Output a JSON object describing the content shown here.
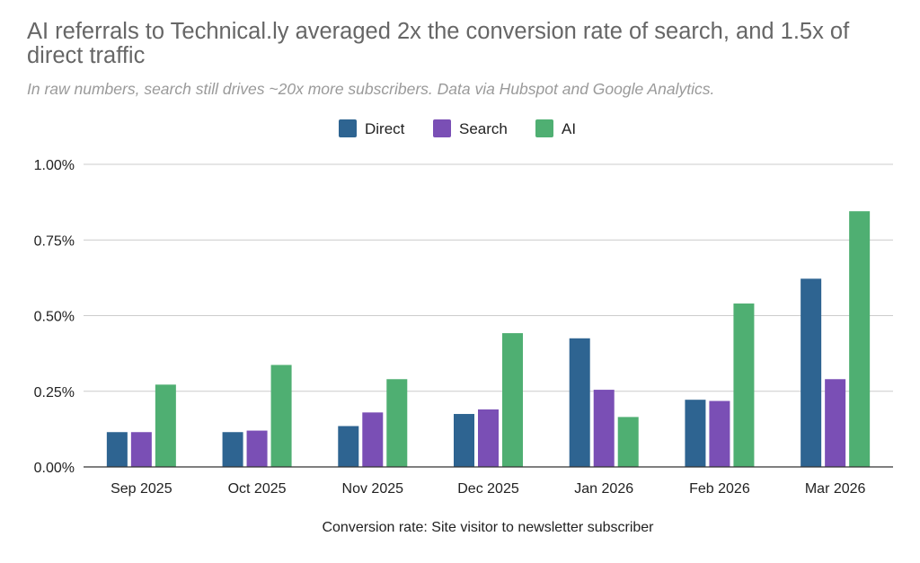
{
  "chart_data": {
    "type": "bar",
    "title": "AI referrals to Technical.ly averaged 2x the conversion rate of search, and 1.5x of direct traffic",
    "subtitle": "In raw numbers, search still drives ~20x more subscribers. Data via Hubspot and Google Analytics.",
    "xlabel": "Conversion rate: Site visitor to newsletter subscriber",
    "ylabel": "",
    "categories": [
      "Sep 2025",
      "Oct 2025",
      "Nov 2025",
      "Dec 2025",
      "Jan 2026",
      "Feb 2026",
      "Mar 2026"
    ],
    "series": [
      {
        "name": "Direct",
        "color": "#2e6491",
        "values": [
          0.115,
          0.115,
          0.135,
          0.175,
          0.425,
          0.222,
          0.622
        ]
      },
      {
        "name": "Search",
        "color": "#7a4fb5",
        "values": [
          0.115,
          0.12,
          0.18,
          0.19,
          0.255,
          0.218,
          0.29
        ]
      },
      {
        "name": "AI",
        "color": "#4faf72",
        "values": [
          0.272,
          0.337,
          0.29,
          0.442,
          0.165,
          0.54,
          0.845
        ]
      }
    ],
    "ylim": [
      0,
      1.0
    ],
    "yticks": [
      "0.00%",
      "0.25%",
      "0.50%",
      "0.75%",
      "1.00%"
    ],
    "ytick_values": [
      0,
      0.25,
      0.5,
      0.75,
      1.0
    ],
    "legend_position": "top-center",
    "grid": true
  }
}
